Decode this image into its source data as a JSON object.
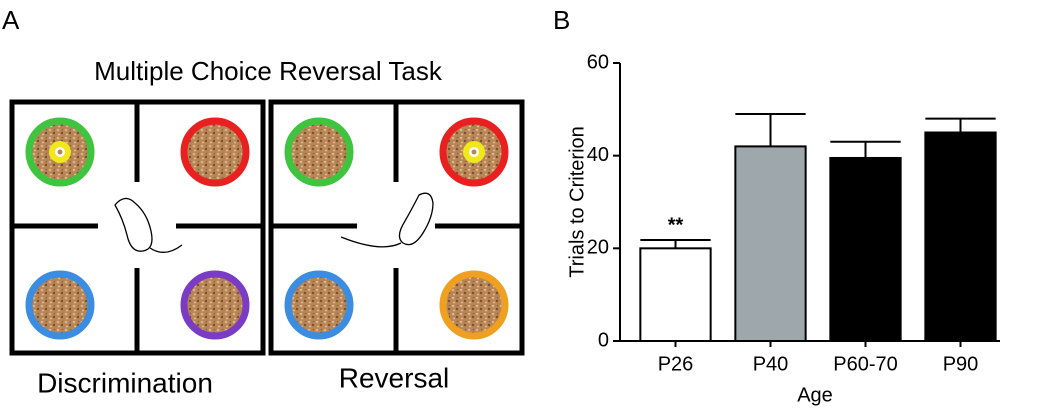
{
  "panel_a": {
    "label": "A",
    "title": "Multiple Choice Reversal Task",
    "captions": [
      "Discrimination",
      "Reversal"
    ]
  },
  "chart_data": {
    "type": "bar",
    "panel_label": "B",
    "categories": [
      "P26",
      "P40",
      "P60-70",
      "P90"
    ],
    "values": [
      20,
      42,
      39.5,
      45
    ],
    "errors": [
      1.8,
      7,
      3.5,
      3
    ],
    "colors": [
      "#ffffff",
      "#9ea7ab",
      "#000000",
      "#000000"
    ],
    "ylim": [
      0,
      60
    ],
    "yticks": [
      0,
      20,
      40,
      60
    ],
    "xlabel": "Age",
    "ylabel": "Trials to Criterion",
    "annotations": [
      {
        "category": "P26",
        "text": "**"
      }
    ]
  }
}
